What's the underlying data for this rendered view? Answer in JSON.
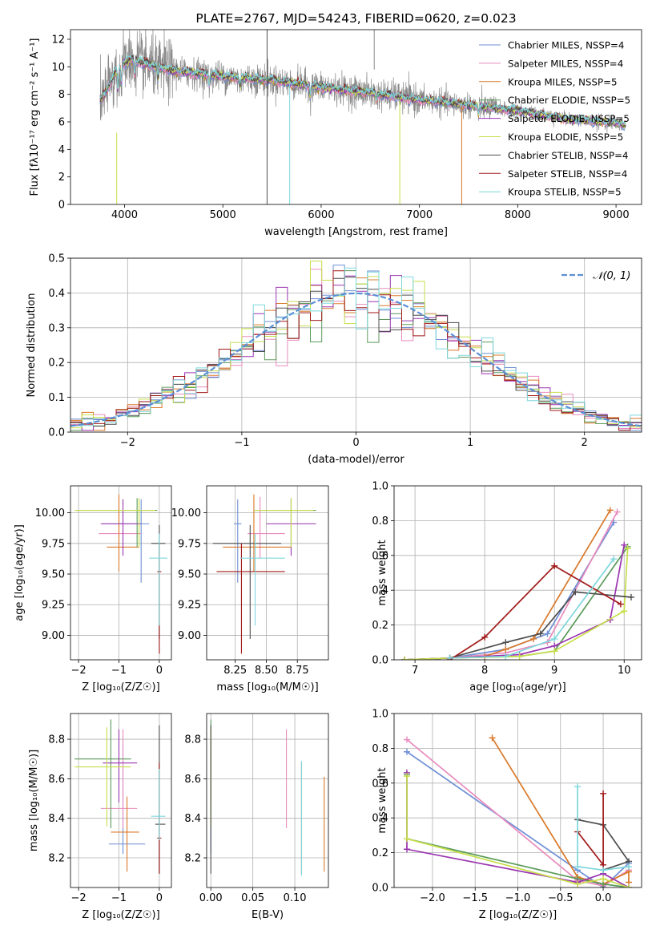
{
  "colors": [
    "#6f8fd6",
    "#e88bbd",
    "#d9792a",
    "#5a9a5a",
    "#9a35b0",
    "#c7de4a",
    "#4d4d4d",
    "#a01818",
    "#7ed7dc"
  ],
  "chart_data": [
    {
      "id": "spectrum",
      "type": "line",
      "title": "PLATE=2767, MJD=54243, FIBERID=0620, z=0.023",
      "xlabel": "wavelength [Angstrom, rest frame]",
      "ylabel": "Flux [fλ10⁻¹⁷ erg cm⁻² s⁻¹ A⁻¹]",
      "xlim": [
        3450,
        9260
      ],
      "ylim": [
        0,
        12.7
      ],
      "xticks": [
        4000,
        5000,
        6000,
        7000,
        8000,
        9000
      ],
      "yticks": [
        0,
        2,
        4,
        6,
        8,
        10,
        12
      ],
      "legend_position": "top-right",
      "legend": [
        "Chabrier MILES, NSSP=4",
        "Salpeter MILES, NSSP=4",
        "Kroupa MILES, NSSP=5",
        "Chabrier ELODIE, NSSP=5",
        "Salpeter ELODIE, NSSP=5",
        "Kroupa ELODIE, NSSP=5",
        "Chabrier STELIB, NSSP=4",
        "Salpeter STELIB, NSSP=4",
        "Kroupa STELIB, NSSP=5"
      ],
      "continuum": {
        "x": [
          3750,
          3800,
          3900,
          4000,
          4100,
          4200,
          4500,
          5000,
          5500,
          6000,
          6500,
          7000,
          7500,
          8000,
          8500,
          9000,
          9100
        ],
        "y": [
          7.5,
          8.0,
          9.5,
          10.3,
          10.5,
          10.2,
          9.7,
          9.3,
          9.0,
          8.5,
          8.1,
          7.6,
          7.2,
          6.8,
          6.2,
          5.9,
          5.8
        ]
      }
    },
    {
      "id": "residuals",
      "type": "histogram",
      "xlabel": "(data-model)/error",
      "ylabel": "Normed distribution",
      "xlim": [
        -2.5,
        2.5
      ],
      "ylim": [
        0,
        0.5
      ],
      "xticks": [
        -2,
        -1,
        0,
        1,
        2
      ],
      "yticks": [
        0.0,
        0.1,
        0.2,
        0.3,
        0.4,
        0.5
      ],
      "legend": [
        "𝒩(0, 1)"
      ],
      "legend_position": "top-right",
      "grid": true
    },
    {
      "id": "age-vs-Z",
      "type": "errorbar",
      "xlabel": "Z [log₁₀(Z/Z☉)]",
      "ylabel": "age  [log₁₀(age/yr)]",
      "xlim": [
        -2.2,
        0.3
      ],
      "ylim": [
        8.8,
        10.22
      ],
      "xticks": [
        -2,
        -1,
        0
      ],
      "yticks": [
        9.0,
        9.25,
        9.5,
        9.75,
        10.0
      ],
      "grid": true,
      "points": [
        {
          "x": -0.45,
          "xerr": [
            0.95,
            0.2
          ],
          "y": 9.91,
          "yerr": [
            0.48,
            0.2
          ]
        },
        {
          "x": -1.0,
          "xerr": [
            0.5,
            0.55
          ],
          "y": 9.83,
          "yerr": [
            0.2,
            0.3
          ]
        },
        {
          "x": -1.0,
          "xerr": [
            0.3,
            0.5
          ],
          "y": 9.72,
          "yerr": [
            0.2,
            0.43
          ]
        },
        {
          "x": -0.55,
          "xerr": [
            1.5,
            0.5
          ],
          "y": 10.02,
          "yerr": [
            0.3,
            0.1
          ]
        },
        {
          "x": -0.9,
          "xerr": [
            0.55,
            0.45
          ],
          "y": 9.91,
          "yerr": [
            0.26,
            0.2
          ]
        },
        {
          "x": -0.5,
          "xerr": [
            1.6,
            0.4
          ],
          "y": 10.02,
          "yerr": [
            0.3,
            0.1
          ]
        },
        {
          "x": 0.0,
          "xerr": [
            0.2,
            0.15
          ],
          "y": 9.75,
          "yerr": [
            0.78,
            0.15
          ]
        },
        {
          "x": 0.0,
          "xerr": [
            0.05,
            0.05
          ],
          "y": 9.52,
          "yerr": [
            0.67,
            0.23
          ]
        },
        {
          "x": 0.0,
          "xerr": [
            0.25,
            0.2
          ],
          "y": 9.63,
          "yerr": [
            0.55,
            0.2
          ]
        }
      ]
    },
    {
      "id": "age-vs-mass",
      "type": "errorbar",
      "xlabel": "mass [log₁₀(M/M☉)]",
      "ylabel": "",
      "xlim": [
        8.02,
        9.0
      ],
      "ylim": [
        8.8,
        10.22
      ],
      "xticks": [
        8.25,
        8.5,
        8.75
      ],
      "yticks": [
        9.0,
        9.25,
        9.5,
        9.75,
        10.0
      ],
      "grid": true,
      "points": [
        {
          "x": 8.27,
          "xerr": [
            0.03,
            0.03
          ],
          "y": 9.91,
          "yerr": [
            0.48,
            0.2
          ]
        },
        {
          "x": 8.45,
          "xerr": [
            0.1,
            0.2
          ],
          "y": 9.83,
          "yerr": [
            0.2,
            0.3
          ]
        },
        {
          "x": 8.4,
          "xerr": [
            0.25,
            0.3
          ],
          "y": 9.72,
          "yerr": [
            0.2,
            0.43
          ]
        },
        {
          "x": 8.7,
          "xerr": [
            0.3,
            0.2
          ],
          "y": 10.02,
          "yerr": [
            0.3,
            0.1
          ]
        },
        {
          "x": 8.7,
          "xerr": [
            0.2,
            0.2
          ],
          "y": 9.91,
          "yerr": [
            0.26,
            0.2
          ]
        },
        {
          "x": 8.7,
          "xerr": [
            0.3,
            0.18
          ],
          "y": 10.02,
          "yerr": [
            0.3,
            0.1
          ]
        },
        {
          "x": 8.37,
          "xerr": [
            0.3,
            0.25
          ],
          "y": 9.75,
          "yerr": [
            0.78,
            0.15
          ]
        },
        {
          "x": 8.3,
          "xerr": [
            0.2,
            0.35
          ],
          "y": 9.52,
          "yerr": [
            0.67,
            0.23
          ]
        },
        {
          "x": 8.41,
          "xerr": [
            0.12,
            0.24
          ],
          "y": 9.63,
          "yerr": [
            0.55,
            0.2
          ]
        }
      ]
    },
    {
      "id": "weight-vs-age",
      "type": "line",
      "xlabel": "age  [log₁₀(age/yr)]",
      "ylabel": "mass weight",
      "xlim": [
        6.7,
        10.25
      ],
      "ylim": [
        0,
        1.0
      ],
      "xticks": [
        7,
        8,
        9,
        10
      ],
      "yticks": [
        0.0,
        0.2,
        0.4,
        0.6,
        0.8,
        1.0
      ],
      "grid": true,
      "series": [
        {
          "x": [
            6.85,
            7.5,
            8.3,
            8.9,
            9.85
          ],
          "y": [
            0.0,
            0.01,
            0.06,
            0.15,
            0.79
          ]
        },
        {
          "x": [
            6.85,
            7.5,
            8.3,
            8.9,
            9.9
          ],
          "y": [
            0.0,
            0.01,
            0.04,
            0.1,
            0.85
          ]
        },
        {
          "x": [
            6.85,
            7.5,
            8.0,
            8.3,
            8.7,
            9.8
          ],
          "y": [
            0.0,
            0.01,
            0.02,
            0.06,
            0.12,
            0.86
          ]
        },
        {
          "x": [
            6.85,
            7.5,
            8.5,
            9.0,
            10.05
          ],
          "y": [
            0.0,
            0.01,
            0.02,
            0.05,
            0.65
          ]
        },
        {
          "x": [
            6.85,
            7.5,
            8.5,
            9.0,
            9.8,
            10.0
          ],
          "y": [
            0.0,
            0.01,
            0.03,
            0.08,
            0.23,
            0.66
          ]
        },
        {
          "x": [
            6.85,
            7.5,
            8.5,
            9.0,
            10.0,
            10.05
          ],
          "y": [
            0.0,
            0.01,
            0.02,
            0.05,
            0.28,
            0.64
          ]
        },
        {
          "x": [
            7.5,
            8.3,
            8.8,
            9.3,
            10.1
          ],
          "y": [
            0.01,
            0.1,
            0.15,
            0.39,
            0.36
          ]
        },
        {
          "x": [
            7.5,
            8.0,
            9.0,
            9.95
          ],
          "y": [
            0.0,
            0.13,
            0.54,
            0.32
          ]
        },
        {
          "x": [
            7.5,
            8.3,
            9.0,
            9.85
          ],
          "y": [
            0.01,
            0.02,
            0.12,
            0.58
          ]
        }
      ]
    },
    {
      "id": "mass-vs-Z",
      "type": "errorbar",
      "xlabel": "Z [log₁₀(Z/Z☉)]",
      "ylabel": "mass [log₁₀(M/M☉)]",
      "xlim": [
        -2.2,
        0.3
      ],
      "ylim": [
        8.05,
        8.93
      ],
      "xticks": [
        -2,
        -1,
        0
      ],
      "yticks": [
        8.2,
        8.4,
        8.6,
        8.8
      ],
      "grid": true,
      "points": [
        {
          "x": -0.9,
          "xerr": [
            0.35,
            0.55
          ],
          "y": 8.27,
          "yerr": [
            0.05,
            0.5
          ]
        },
        {
          "x": -0.9,
          "xerr": [
            0.55,
            0.35
          ],
          "y": 8.45,
          "yerr": [
            0.1,
            0.4
          ]
        },
        {
          "x": -0.8,
          "xerr": [
            0.4,
            0.3
          ],
          "y": 8.33,
          "yerr": [
            0.2,
            0.18
          ]
        },
        {
          "x": -1.2,
          "xerr": [
            0.9,
            0.5
          ],
          "y": 8.7,
          "yerr": [
            0.35,
            0.2
          ]
        },
        {
          "x": -1.0,
          "xerr": [
            0.4,
            0.45
          ],
          "y": 8.68,
          "yerr": [
            0.2,
            0.17
          ]
        },
        {
          "x": -1.3,
          "xerr": [
            0.8,
            0.6
          ],
          "y": 8.66,
          "yerr": [
            0.3,
            0.2
          ]
        },
        {
          "x": 0.0,
          "xerr": [
            0.1,
            0.15
          ],
          "y": 8.37,
          "yerr": [
            0.25,
            0.5
          ]
        },
        {
          "x": 0.0,
          "xerr": [
            0.05,
            0.05
          ],
          "y": 8.3,
          "yerr": [
            0.18,
            0.38
          ]
        },
        {
          "x": 0.0,
          "xerr": [
            0.2,
            0.15
          ],
          "y": 8.41,
          "yerr": [
            0.12,
            0.24
          ]
        }
      ]
    },
    {
      "id": "mass-vs-ebv",
      "type": "errorbar",
      "xlabel": "E(B-V)",
      "ylabel": "",
      "xlim": [
        -0.005,
        0.14
      ],
      "ylim": [
        8.05,
        8.93
      ],
      "xticks": [
        0.0,
        0.05,
        0.1
      ],
      "yticks": [
        8.2,
        8.4,
        8.6,
        8.8
      ],
      "grid": true,
      "points": [
        {
          "x": 0.0,
          "y": 8.27,
          "yerr": [
            0.05,
            0.5
          ]
        },
        {
          "x": 0.09,
          "y": 8.45,
          "yerr": [
            0.1,
            0.4
          ]
        },
        {
          "x": 0.135,
          "y": 8.33,
          "yerr": [
            0.2,
            0.28
          ]
        },
        {
          "x": 0.0,
          "y": 8.7,
          "yerr": [
            0.35,
            0.2
          ]
        },
        {
          "x": 0.0,
          "y": 8.68,
          "yerr": [
            0.2,
            0.17
          ]
        },
        {
          "x": 0.0,
          "y": 8.66,
          "yerr": [
            0.3,
            0.2
          ]
        },
        {
          "x": 0.0,
          "y": 8.37,
          "yerr": [
            0.25,
            0.5
          ]
        },
        {
          "x": 0.108,
          "y": 8.3,
          "yerr": [
            0.18,
            0.38
          ]
        },
        {
          "x": 0.108,
          "y": 8.41,
          "yerr": [
            0.3,
            0.28
          ]
        }
      ]
    },
    {
      "id": "weight-vs-Z",
      "type": "line",
      "xlabel": "Z [log₁₀(Z/Z☉)]",
      "ylabel": "mass weight",
      "xlim": [
        -2.45,
        0.45
      ],
      "ylim": [
        0,
        1.0
      ],
      "xticks": [
        -2.0,
        -1.5,
        -1.0,
        -0.5,
        0.0
      ],
      "yticks": [
        0.0,
        0.2,
        0.4,
        0.6,
        0.8,
        1.0
      ],
      "grid": true,
      "series": [
        {
          "x": [
            -2.3,
            -0.3,
            0.0,
            0.3
          ],
          "y": [
            0.78,
            0.1,
            0.0,
            0.14
          ]
        },
        {
          "x": [
            -2.3,
            -0.3,
            0.0,
            0.3
          ],
          "y": [
            0.85,
            0.04,
            0.01,
            0.1
          ]
        },
        {
          "x": [
            -1.3,
            -0.3,
            0.0,
            0.3,
            0.3
          ],
          "y": [
            0.86,
            0.06,
            0.02,
            0.09,
            0.03
          ]
        },
        {
          "x": [
            -2.3,
            -2.3,
            -0.3,
            0.0,
            0.3
          ],
          "y": [
            0.65,
            0.28,
            0.05,
            0.02,
            0.0
          ]
        },
        {
          "x": [
            -2.3,
            -2.3,
            -0.3,
            0.0,
            0.3
          ],
          "y": [
            0.66,
            0.22,
            0.03,
            0.08,
            0.0
          ]
        },
        {
          "x": [
            -2.3,
            -2.3,
            -0.3,
            0.0,
            0.3
          ],
          "y": [
            0.64,
            0.28,
            0.02,
            0.05,
            0.0
          ]
        },
        {
          "x": [
            -0.3,
            0.0,
            0.3,
            0.0
          ],
          "y": [
            0.39,
            0.36,
            0.15,
            0.1
          ]
        },
        {
          "x": [
            -0.3,
            0.0,
            0.0
          ],
          "y": [
            0.32,
            0.13,
            0.54
          ]
        },
        {
          "x": [
            -0.3,
            -0.3,
            0.0,
            0.3
          ],
          "y": [
            0.58,
            0.12,
            0.1,
            0.12
          ]
        }
      ]
    }
  ]
}
